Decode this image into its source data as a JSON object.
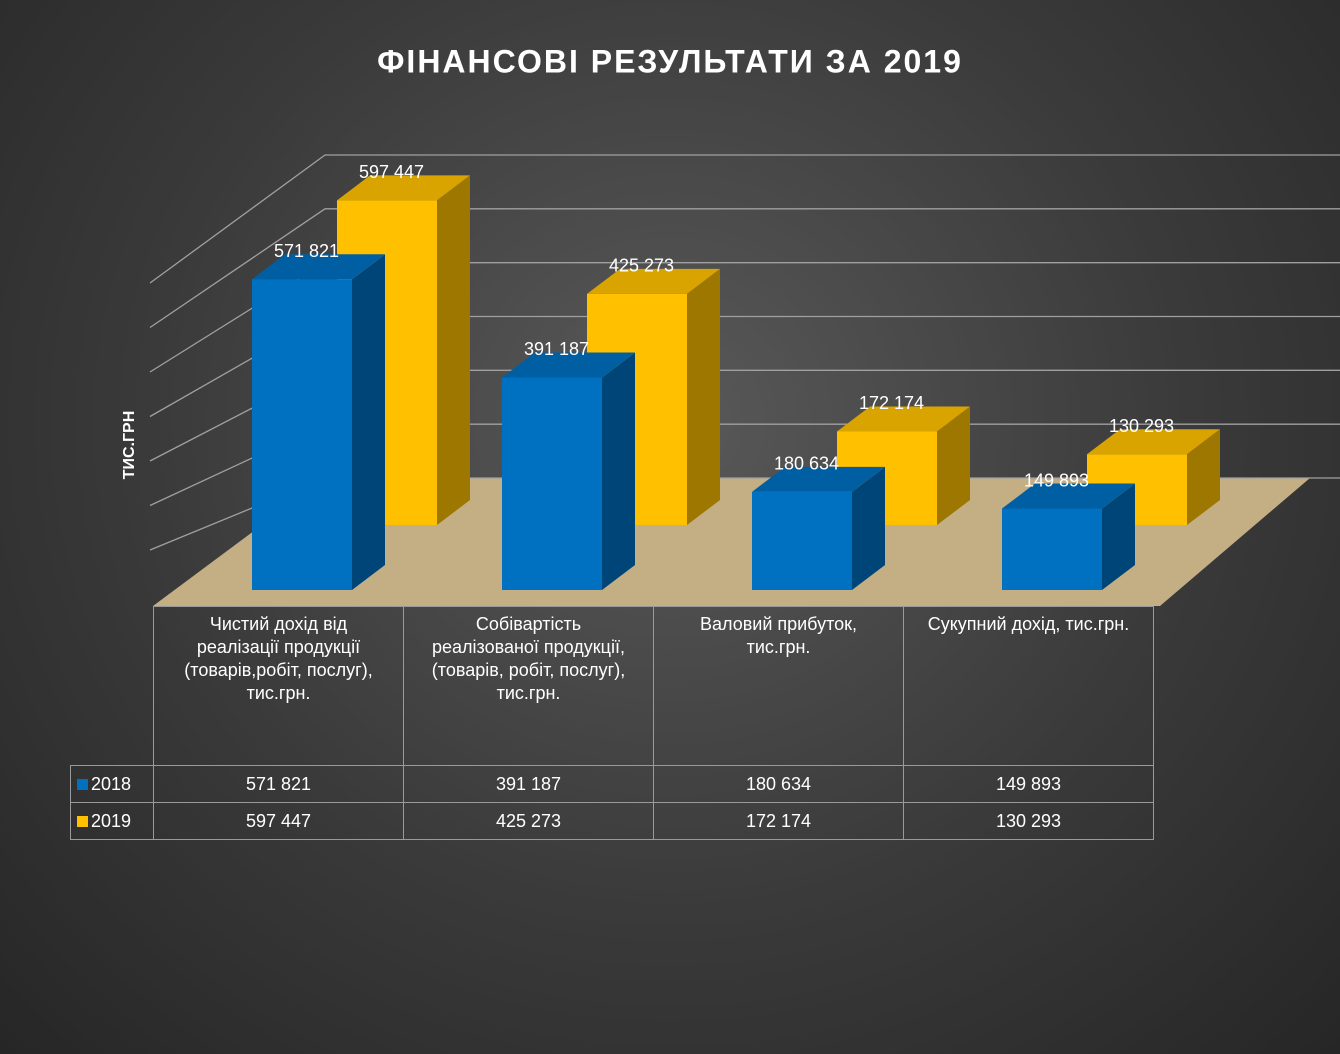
{
  "chart_data": {
    "type": "bar3d",
    "title": "ФІНАНСОВІ РЕЗУЛЬТАТИ ЗА 2019",
    "y_label": "ТИС.ГРН",
    "categories": [
      "Чистий дохід  від реалізації продукції (товарів,робіт, послуг), тис.грн.",
      "Собівартість реалізованої продукції, (товарів, робіт, послуг), тис.грн.",
      "Валовий прибуток, тис.грн.",
      "Сукупний дохід, тис.грн."
    ],
    "series": [
      {
        "name": "2018",
        "color": "#0070c0",
        "values": [
          571821,
          391187,
          180634,
          149893
        ],
        "value_labels": [
          "571 821",
          "391 187",
          "180 634",
          "149 893"
        ]
      },
      {
        "name": "2019",
        "color": "#ffc000",
        "values": [
          597447,
          425273,
          172174,
          130293
        ],
        "value_labels": [
          "597 447",
          "425 273",
          "172 174",
          "130 293"
        ]
      }
    ],
    "ylim": [
      0,
      600000
    ],
    "yticks": [
      0,
      100000,
      200000,
      300000,
      400000,
      500000,
      600000
    ],
    "grid": true,
    "data_table": true
  }
}
